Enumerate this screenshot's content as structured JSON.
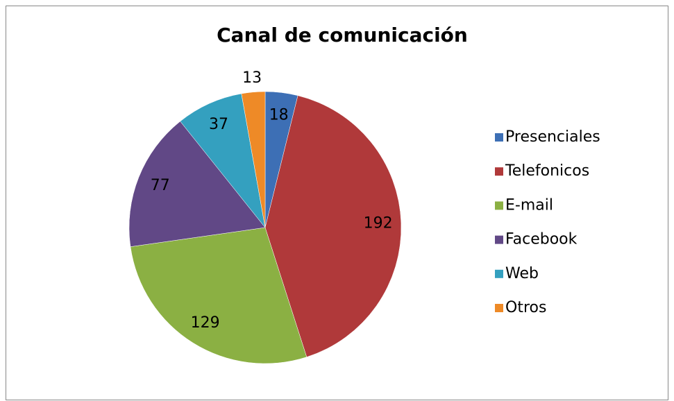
{
  "chart_data": {
    "type": "pie",
    "title": "Canal de comunicación",
    "categories": [
      "Presenciales",
      "Telefonicos",
      "E-mail",
      "Facebook",
      "Web",
      "Otros"
    ],
    "values": [
      18,
      192,
      129,
      77,
      37,
      13
    ],
    "colors": [
      "#3d6fb5",
      "#b0393a",
      "#8bb043",
      "#614886",
      "#34a0bf",
      "#ee8a27"
    ],
    "legend": "right"
  }
}
